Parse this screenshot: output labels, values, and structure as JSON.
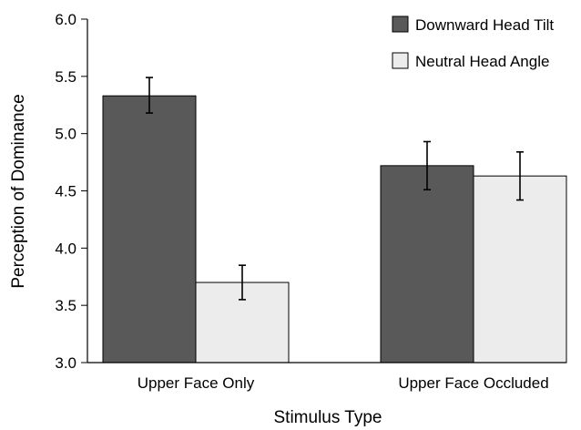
{
  "chart_data": {
    "type": "bar",
    "xlabel": "Stimulus Type",
    "ylabel": "Perception of Dominance",
    "ylim": [
      3.0,
      6.0
    ],
    "yticks": [
      "3.0",
      "3.5",
      "4.0",
      "4.5",
      "5.0",
      "5.5",
      "6.0"
    ],
    "categories": [
      "Upper Face Only",
      "Upper Face Occluded"
    ],
    "series": [
      {
        "name": "Downward Head Tilt",
        "color": "#595959",
        "values": [
          5.33,
          4.72
        ],
        "error_low": [
          5.18,
          4.51
        ],
        "error_high": [
          5.49,
          4.93
        ]
      },
      {
        "name": "Neutral Head Angle",
        "color": "#ececec",
        "values": [
          3.7,
          4.63
        ],
        "error_low": [
          3.55,
          4.42
        ],
        "error_high": [
          3.85,
          4.84
        ]
      }
    ],
    "legend_position": "top-right",
    "grid": false
  }
}
